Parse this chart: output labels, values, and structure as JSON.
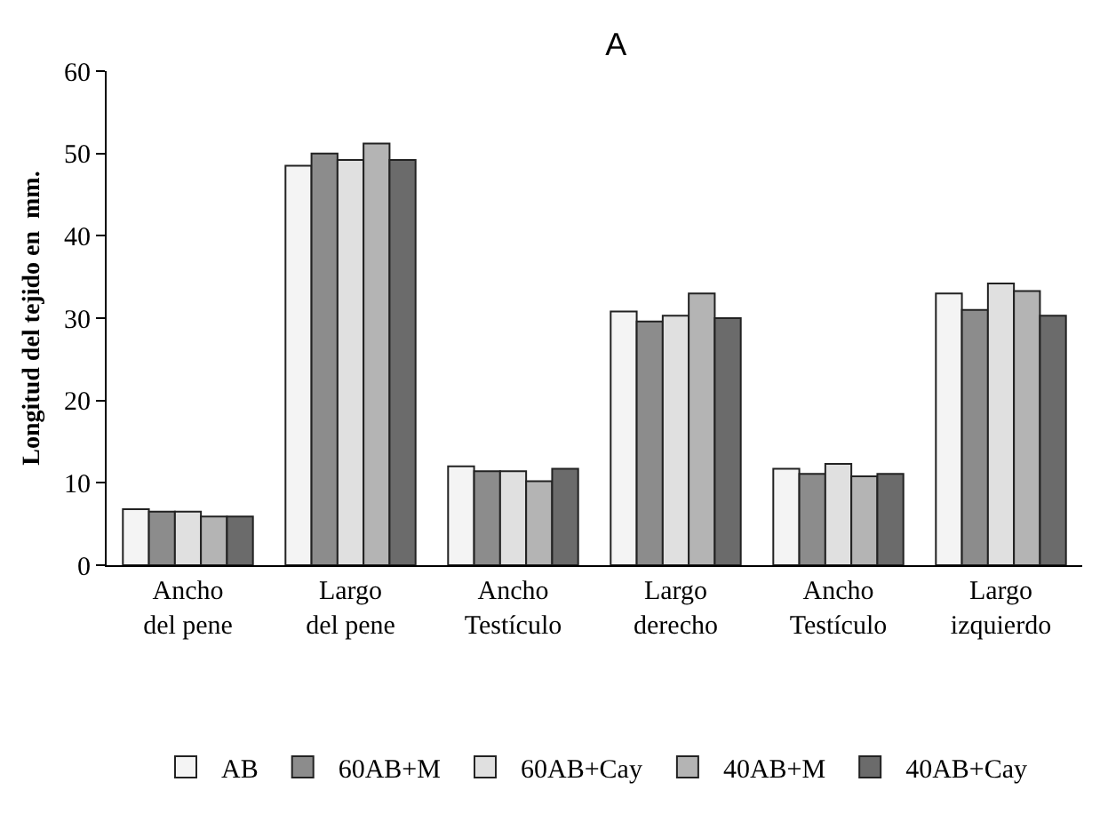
{
  "chart_data": {
    "type": "bar",
    "title": "A",
    "ylabel": "Longitud del tejido en  mm.",
    "categories": [
      "Ancho del pene",
      "Largo del pene",
      "Ancho Testículo",
      "Largo derecho",
      "Ancho Testículo",
      "Largo izquierdo"
    ],
    "series": [
      {
        "name": "AB",
        "color": "#f4f4f4",
        "values": [
          6.8,
          48.5,
          12,
          30.8,
          11.7,
          33
        ]
      },
      {
        "name": "60AB+M",
        "color": "#8c8c8c",
        "values": [
          6.5,
          50,
          11.4,
          29.6,
          11.1,
          31
        ]
      },
      {
        "name": "60AB+Cay",
        "color": "#e0e0e0",
        "values": [
          6.5,
          49.2,
          11.4,
          30.3,
          12.3,
          34.2
        ]
      },
      {
        "name": "40AB+M",
        "color": "#b4b4b4",
        "values": [
          5.9,
          51.2,
          10.2,
          33,
          10.8,
          33.3
        ]
      },
      {
        "name": "40AB+Cay",
        "color": "#6b6b6b",
        "values": [
          5.9,
          49.2,
          11.7,
          30,
          11.1,
          30.3
        ]
      }
    ],
    "ylim": [
      0,
      60
    ],
    "yticks": [
      0,
      10,
      20,
      30,
      40,
      50,
      60
    ],
    "grid": false,
    "legend": "bottom"
  }
}
